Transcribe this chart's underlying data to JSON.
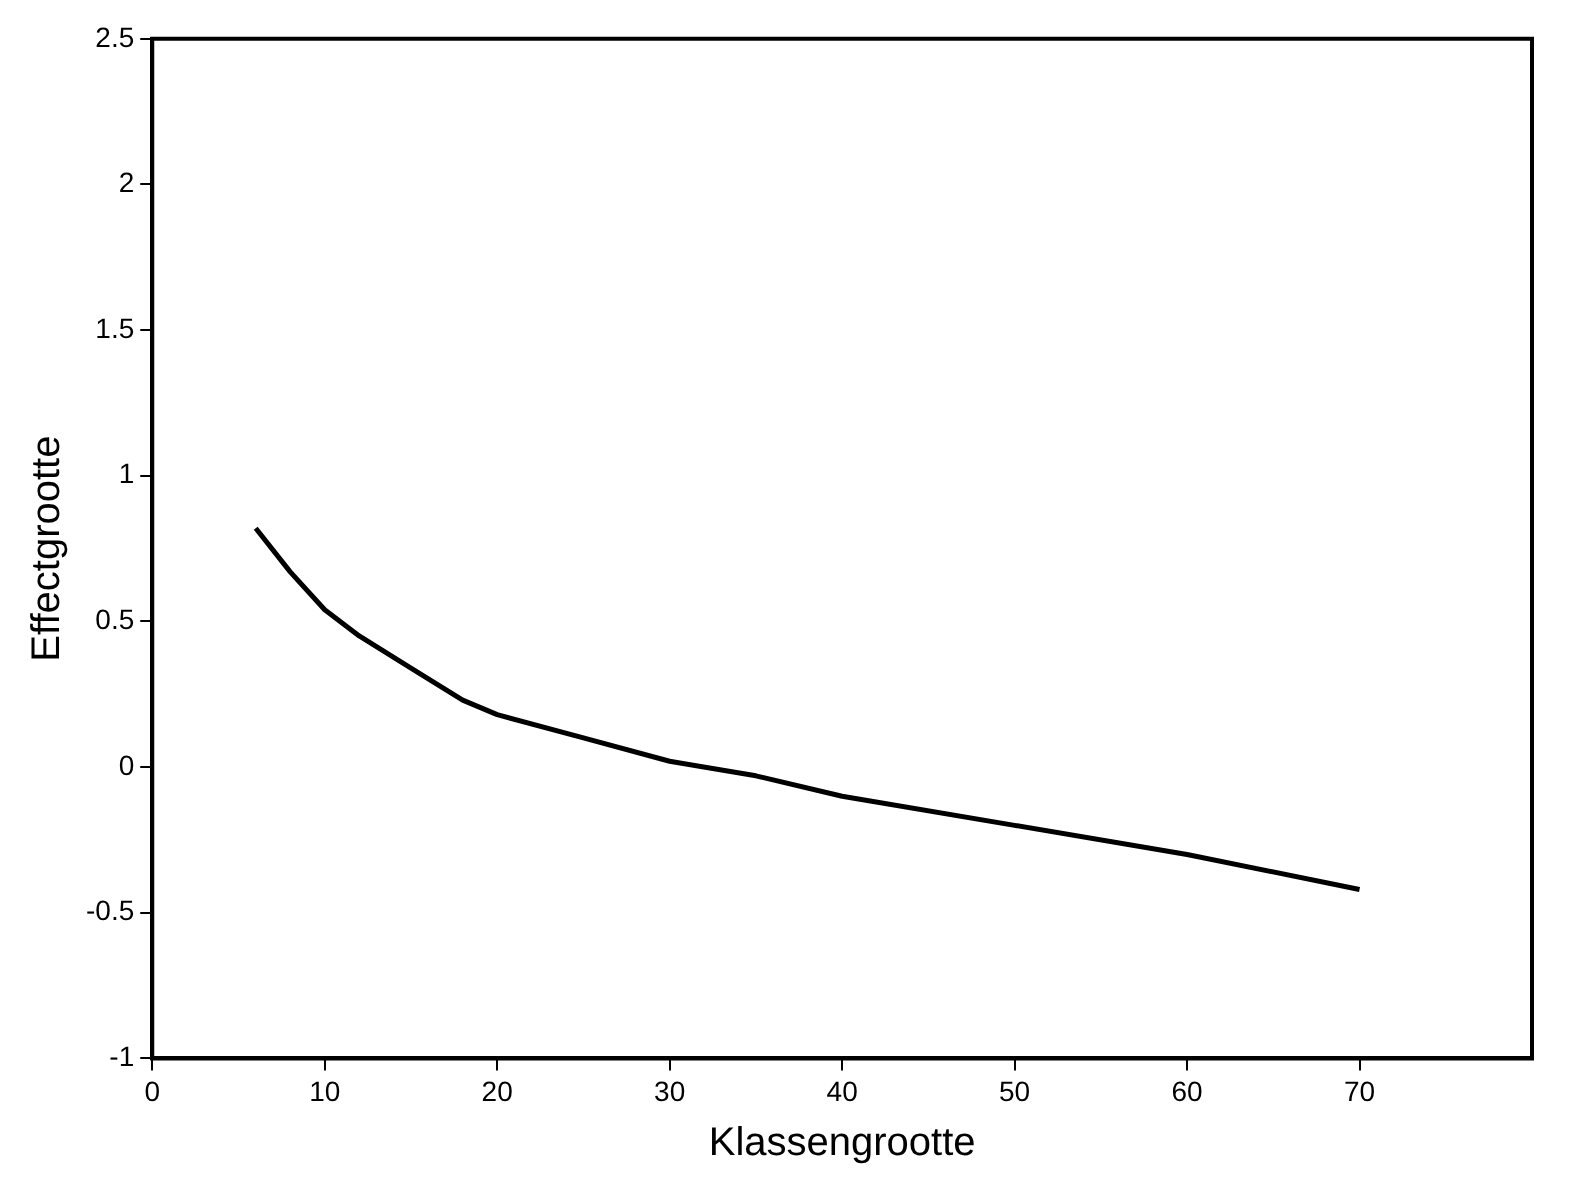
{
  "chart_data": {
    "type": "line",
    "xlabel": "Klassengrootte",
    "ylabel": "Effectgrootte",
    "x": [
      6,
      8,
      10,
      12,
      15,
      18,
      20,
      25,
      30,
      35,
      40,
      50,
      60,
      70
    ],
    "values": [
      0.82,
      0.67,
      0.54,
      0.45,
      0.34,
      0.23,
      0.18,
      0.1,
      0.02,
      -0.03,
      -0.1,
      -0.2,
      -0.3,
      -0.42
    ],
    "color": "#000000",
    "xlim": [
      0,
      80
    ],
    "xticks": [
      0,
      10,
      20,
      30,
      40,
      50,
      60,
      70
    ],
    "ylim": [
      -1,
      2.5
    ],
    "yticks": [
      -1,
      -0.5,
      0,
      0.5,
      1,
      1.5,
      2,
      2.5
    ],
    "grid": false,
    "legend": false,
    "marker": "none",
    "line_style": "solid"
  }
}
